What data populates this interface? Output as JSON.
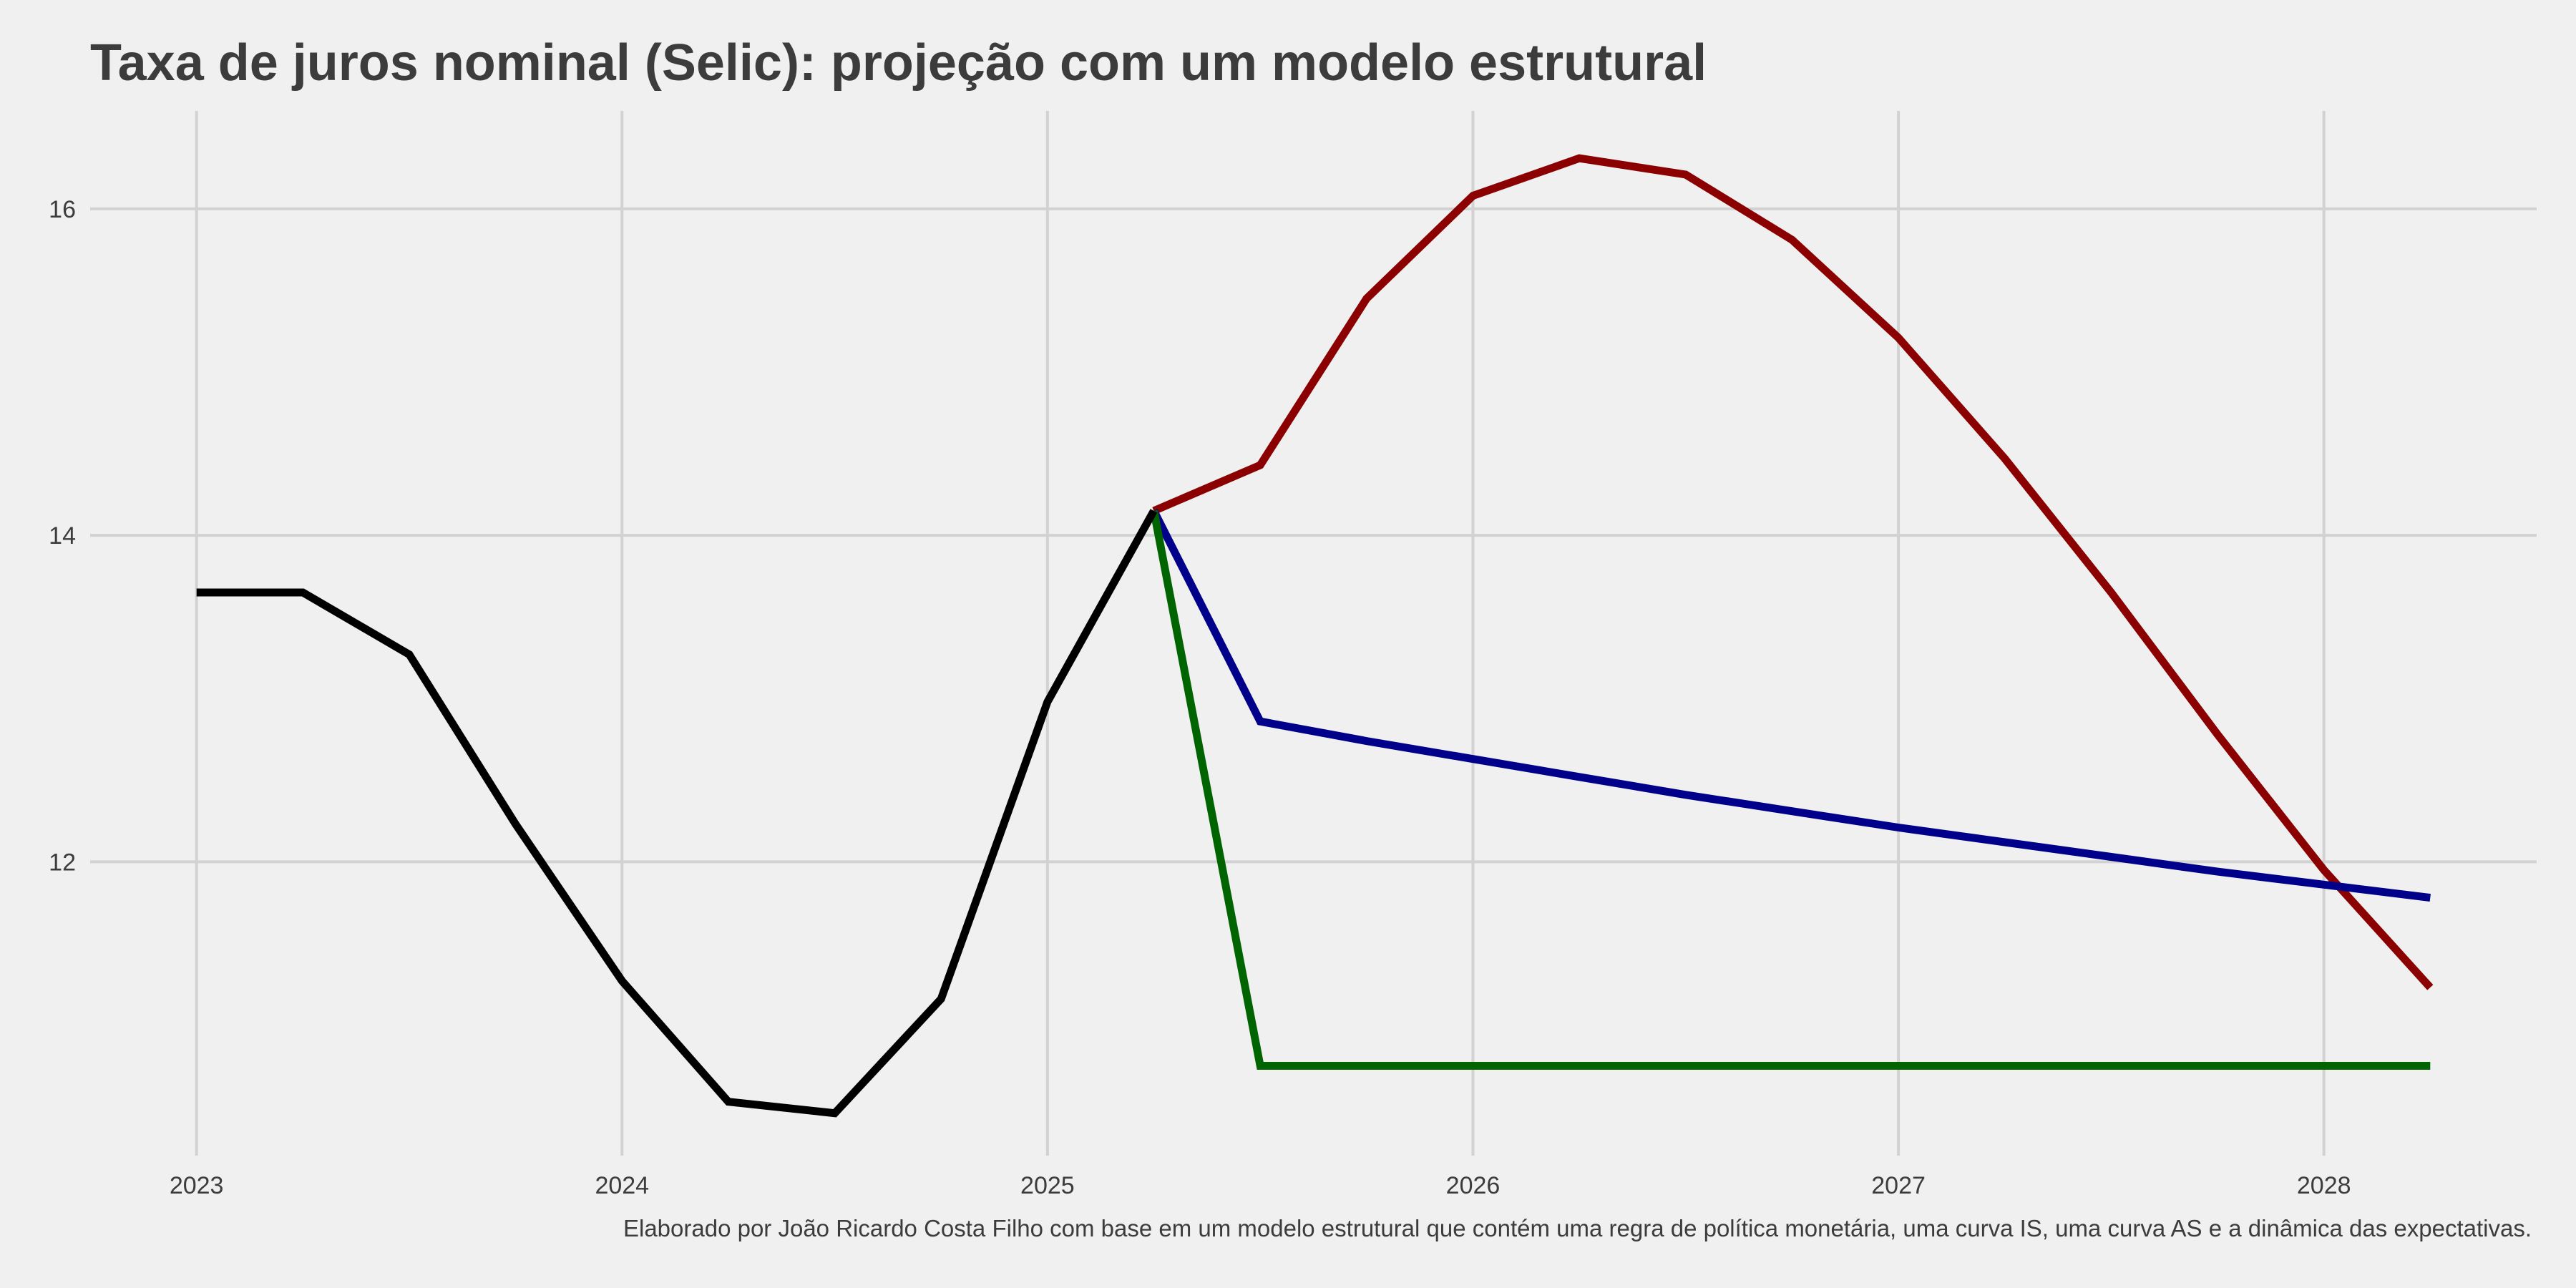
{
  "chart_data": {
    "type": "line",
    "title": "Taxa de juros nominal (Selic): projeção com um modelo estrutural",
    "caption": "Elaborado por João Ricardo Costa Filho com base em um modelo estrutural que contém uma regra de política monetária, uma curva IS, uma curva AS e a dinâmica das expectativas.",
    "xlabel": "",
    "ylabel": "",
    "xlim": [
      2022.75,
      2028.5
    ],
    "ylim": [
      10.2,
      16.6
    ],
    "x_ticks": [
      2023,
      2024,
      2025,
      2026,
      2027,
      2028
    ],
    "y_ticks": [
      12,
      14,
      16
    ],
    "grid": true,
    "legend": "none",
    "series": [
      {
        "color": "#000000",
        "points": [
          {
            "x": "2023-01-01",
            "y": 13.65
          },
          {
            "x": "2023-04-01",
            "y": 13.65
          },
          {
            "x": "2023-07-01",
            "y": 13.27
          },
          {
            "x": "2023-10-01",
            "y": 12.23
          },
          {
            "x": "2024-01-01",
            "y": 11.27
          },
          {
            "x": "2024-04-01",
            "y": 10.53
          },
          {
            "x": "2024-07-01",
            "y": 10.46
          },
          {
            "x": "2024-10-01",
            "y": 11.16
          },
          {
            "x": "2025-01-01",
            "y": 12.98
          },
          {
            "x": "2025-04-01",
            "y": 14.15
          }
        ]
      },
      {
        "color": "#8b0000",
        "points": [
          {
            "x": "2025-04-01",
            "y": 14.15
          },
          {
            "x": "2025-07-01",
            "y": 14.43
          },
          {
            "x": "2025-10-01",
            "y": 15.45
          },
          {
            "x": "2026-01-01",
            "y": 16.08
          },
          {
            "x": "2026-04-01",
            "y": 16.31
          },
          {
            "x": "2026-07-01",
            "y": 16.21
          },
          {
            "x": "2026-10-01",
            "y": 15.81
          },
          {
            "x": "2027-01-01",
            "y": 15.21
          },
          {
            "x": "2027-04-01",
            "y": 14.47
          },
          {
            "x": "2027-07-01",
            "y": 13.65
          },
          {
            "x": "2027-10-01",
            "y": 12.78
          },
          {
            "x": "2028-01-01",
            "y": 11.95
          },
          {
            "x": "2028-04-01",
            "y": 11.23
          }
        ]
      },
      {
        "color": "#00008b",
        "points": [
          {
            "x": "2025-04-01",
            "y": 14.15
          },
          {
            "x": "2025-07-01",
            "y": 12.86
          },
          {
            "x": "2025-10-01",
            "y": 12.74
          },
          {
            "x": "2026-01-01",
            "y": 12.63
          },
          {
            "x": "2026-04-01",
            "y": 12.52
          },
          {
            "x": "2026-07-01",
            "y": 12.41
          },
          {
            "x": "2026-10-01",
            "y": 12.31
          },
          {
            "x": "2027-01-01",
            "y": 12.21
          },
          {
            "x": "2027-04-01",
            "y": 12.12
          },
          {
            "x": "2027-07-01",
            "y": 12.03
          },
          {
            "x": "2027-10-01",
            "y": 11.94
          },
          {
            "x": "2028-01-01",
            "y": 11.86
          },
          {
            "x": "2028-04-01",
            "y": 11.78
          }
        ]
      },
      {
        "color": "#006400",
        "points": [
          {
            "x": "2025-04-01",
            "y": 14.15
          },
          {
            "x": "2025-07-01",
            "y": 10.75
          },
          {
            "x": "2025-10-01",
            "y": 10.75
          },
          {
            "x": "2026-01-01",
            "y": 10.75
          },
          {
            "x": "2026-04-01",
            "y": 10.75
          },
          {
            "x": "2026-07-01",
            "y": 10.75
          },
          {
            "x": "2026-10-01",
            "y": 10.75
          },
          {
            "x": "2027-01-01",
            "y": 10.75
          },
          {
            "x": "2027-04-01",
            "y": 10.75
          },
          {
            "x": "2027-07-01",
            "y": 10.75
          },
          {
            "x": "2027-10-01",
            "y": 10.75
          },
          {
            "x": "2028-01-01",
            "y": 10.75
          },
          {
            "x": "2028-04-01",
            "y": 10.75
          }
        ]
      }
    ]
  },
  "colors": {
    "background": "#f0f0f0",
    "grid": "#d2d2d2",
    "text": "#3c3c3c"
  }
}
